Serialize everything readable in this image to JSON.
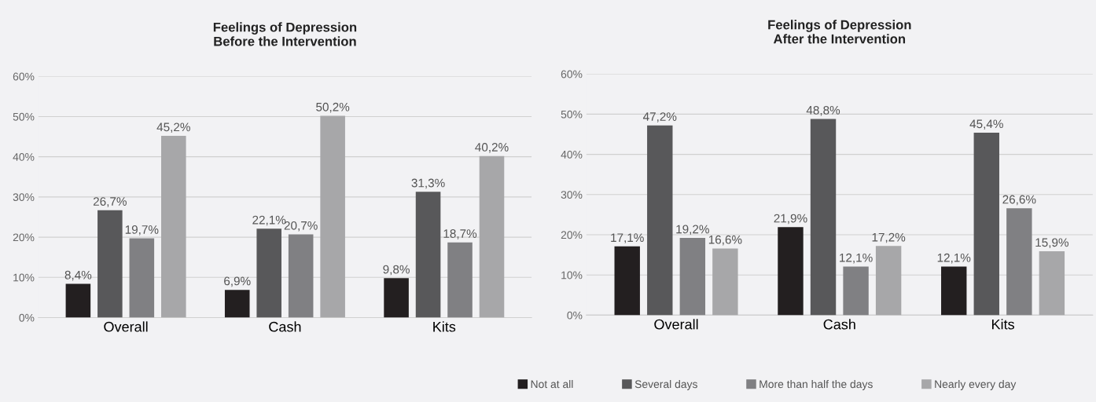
{
  "chart_data": [
    {
      "type": "bar",
      "title": "Feelings of Depression\nBefore the Intervention",
      "categories": [
        "Overall",
        "Cash",
        "Kits"
      ],
      "series": [
        {
          "color": "#231f20",
          "values": [
            8.4,
            6.9,
            9.8
          ],
          "value_labels": [
            "8,4%",
            "6,9%",
            "9,8%"
          ]
        },
        {
          "color": "#58585a",
          "values": [
            26.7,
            22.1,
            31.3
          ],
          "value_labels": [
            "26,7%",
            "22,1%",
            "31,3%"
          ]
        },
        {
          "color": "#808083",
          "values": [
            19.7,
            20.7,
            18.7
          ],
          "value_labels": [
            "19,7%",
            "20,7%",
            "18,7%"
          ]
        },
        {
          "color": "#a7a7a9",
          "values": [
            45.2,
            50.2,
            40.2
          ],
          "value_labels": [
            "45,2%",
            "50,2%",
            "40,2%"
          ]
        }
      ],
      "ylim": [
        0,
        60
      ],
      "yticks": [
        {
          "value": 0,
          "label": "0%"
        },
        {
          "value": 10,
          "label": "10%"
        },
        {
          "value": 20,
          "label": "20%"
        },
        {
          "value": 30,
          "label": "30%"
        },
        {
          "value": 40,
          "label": "40%"
        },
        {
          "value": 50,
          "label": "50%"
        },
        {
          "value": 60,
          "label": "60%"
        }
      ],
      "grid": "y"
    },
    {
      "type": "bar",
      "title": "Feelings of Depression\nAfter the Intervention",
      "categories": [
        "Overall",
        "Cash",
        "Kits"
      ],
      "series": [
        {
          "name": "Not at all",
          "color": "#231f20",
          "values": [
            17.1,
            21.9,
            12.1
          ],
          "value_labels": [
            "17,1%",
            "21,9%",
            "12,1%"
          ]
        },
        {
          "name": "Several days",
          "color": "#58585a",
          "values": [
            47.2,
            48.8,
            45.4
          ],
          "value_labels": [
            "47,2%",
            "48,8%",
            "45,4%"
          ]
        },
        {
          "name": "More than half the days",
          "color": "#808083",
          "values": [
            19.2,
            12.1,
            26.6
          ],
          "value_labels": [
            "19,2%",
            "12,1%",
            "26,6%"
          ]
        },
        {
          "name": "Nearly every day",
          "color": "#a7a7a9",
          "values": [
            16.6,
            17.2,
            15.9
          ],
          "value_labels": [
            "16,6%",
            "17,2%",
            "15,9%"
          ]
        }
      ],
      "ylim": [
        0,
        60
      ],
      "yticks": [
        {
          "value": 0,
          "label": "0%"
        },
        {
          "value": 10,
          "label": "10%"
        },
        {
          "value": 20,
          "label": "20%"
        },
        {
          "value": 30,
          "label": "30%"
        },
        {
          "value": 40,
          "label": "40%"
        },
        {
          "value": 50,
          "label": "50%"
        },
        {
          "value": 60,
          "label": "60%"
        }
      ],
      "grid": "y",
      "legend": "bottom"
    }
  ]
}
